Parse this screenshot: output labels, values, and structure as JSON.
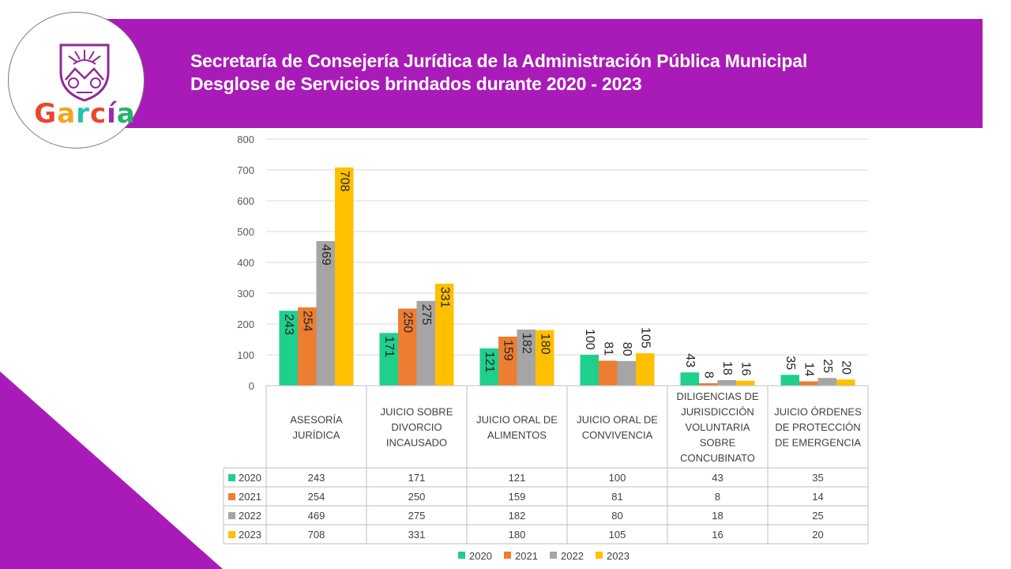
{
  "header": {
    "title_line1": "Secretaría de Consejería Jurídica de la Administración Pública Municipal",
    "title_line2": "Desglose de Servicios brindados durante 2020 - 2023"
  },
  "logo": {
    "wordmark": "García",
    "letters": [
      "G",
      "a",
      "r",
      "c",
      "í",
      "a"
    ]
  },
  "colors": {
    "brand_purple": "#a91bb8",
    "series": [
      "#1fcf8c",
      "#ed7d31",
      "#a5a5a5",
      "#ffc000"
    ],
    "logo_letters": [
      "#e8472e",
      "#f2a51f",
      "#27c2b0",
      "#e8472e",
      "#9a2ab3",
      "#25b36a"
    ]
  },
  "chart_data": {
    "type": "bar",
    "title": "Desglose de Servicios brindados durante 2020 - 2023",
    "categories": [
      [
        "ASESORÍA",
        "JURÍDICA"
      ],
      [
        "JUICIO SOBRE",
        "DIVORCIO",
        "INCAUSADO"
      ],
      [
        "JUICIO ORAL DE",
        "ALIMENTOS"
      ],
      [
        "JUICIO ORAL DE",
        "CONVIVENCIA"
      ],
      [
        "DILIGENCIAS DE",
        "JURISDICCIÓN",
        "VOLUNTARIA",
        "SOBRE",
        "CONCUBINATO"
      ],
      [
        "JUICIO ÓRDENES",
        "DE PROTECCIÓN",
        "DE EMERGENCIA"
      ]
    ],
    "series": [
      {
        "name": "2020",
        "values": [
          243,
          171,
          121,
          100,
          43,
          35
        ]
      },
      {
        "name": "2021",
        "values": [
          254,
          250,
          159,
          81,
          8,
          14
        ]
      },
      {
        "name": "2022",
        "values": [
          469,
          275,
          182,
          80,
          18,
          25
        ]
      },
      {
        "name": "2023",
        "values": [
          708,
          331,
          180,
          105,
          16,
          20
        ]
      }
    ],
    "ylim": [
      0,
      800
    ],
    "yticks": [
      0,
      100,
      200,
      300,
      400,
      500,
      600,
      700,
      800
    ],
    "grid": true,
    "legend": "bottom",
    "data_table": true
  }
}
